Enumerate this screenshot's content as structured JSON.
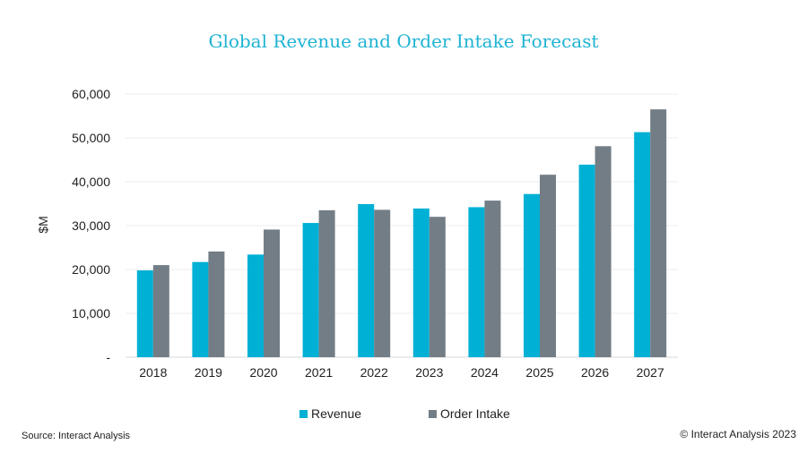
{
  "colors": {
    "revenue": "#00b0d5",
    "order_intake": "#737d85",
    "title": "#1fb3d3",
    "grid": "#eeeeee"
  },
  "footer": {
    "source": "Source: Interact Analysis",
    "copyright": "© Interact Analysis 2023"
  },
  "chart_data": {
    "type": "bar",
    "title": "Global Revenue and Order Intake Forecast",
    "xlabel": "",
    "ylabel": "$M",
    "ylim": [
      0,
      60000
    ],
    "grid": true,
    "legend_placement": "bottom",
    "yticks": [
      "-",
      "10,000",
      "20,000",
      "30,000",
      "40,000",
      "50,000",
      "60,000"
    ],
    "categories": [
      "2018",
      "2019",
      "2020",
      "2021",
      "2022",
      "2023",
      "2024",
      "2025",
      "2026",
      "2027"
    ],
    "series": [
      {
        "name": "Revenue",
        "values": [
          19800,
          21700,
          23400,
          30600,
          34900,
          33900,
          34200,
          37200,
          43900,
          51300
        ]
      },
      {
        "name": "Order Intake",
        "values": [
          21000,
          24100,
          29100,
          33500,
          33600,
          32000,
          35700,
          41600,
          48100,
          56500
        ]
      }
    ]
  }
}
